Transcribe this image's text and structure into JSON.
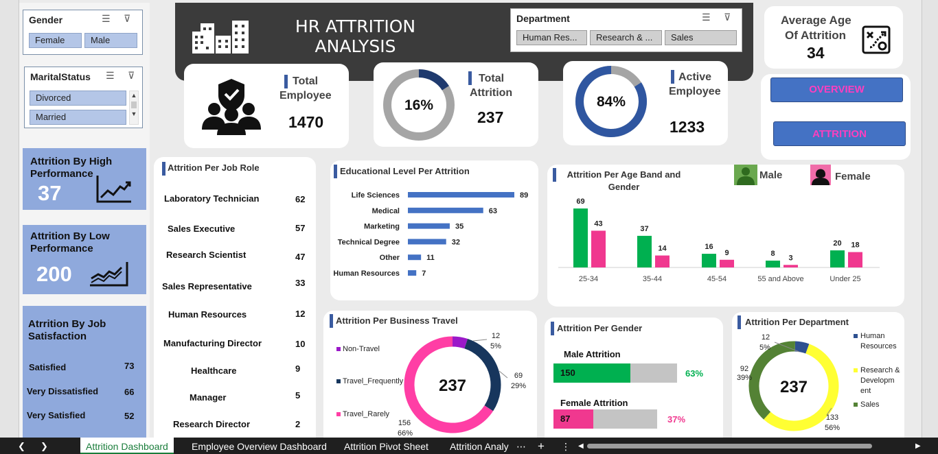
{
  "header": {
    "title_line1": "HR ATTRITION",
    "title_line2": "ANALYSIS"
  },
  "slicers": {
    "gender": {
      "title": "Gender",
      "items": [
        "Female",
        "Male"
      ]
    },
    "marital": {
      "title": "MaritalStatus",
      "items": [
        "Divorced",
        "Married"
      ]
    },
    "department": {
      "title": "Department",
      "items": [
        "Human Res...",
        "Research & ...",
        "Sales"
      ]
    }
  },
  "kpis": {
    "total_employee": {
      "title_line1": "Total",
      "title_line2": "Employee",
      "value": "1470"
    },
    "total_attrition": {
      "title_line1": "Total",
      "title_line2": "Attrition",
      "value": "237",
      "percent": "16%",
      "fraction": 0.16
    },
    "active_employee": {
      "title_line1": "Active",
      "title_line2": "Employee",
      "value": "1233",
      "percent": "84%",
      "fraction": 0.84
    },
    "average_age": {
      "title_line1": "Average Age",
      "title_line2": "Of Attrition",
      "value": "34"
    }
  },
  "nav": {
    "overview": "OVERVIEW",
    "attrition": "ATTRITION"
  },
  "left_panels": {
    "high_perf": {
      "title_line1": "Attrition By High",
      "title_line2": "Performance",
      "value": "37"
    },
    "low_perf": {
      "title_line1": "Attrition By Low",
      "title_line2": "Performance",
      "value": "200"
    },
    "job_sat": {
      "title_line1": "Atrrition By Job",
      "title_line2": "Satisfaction",
      "items": [
        {
          "label": "Satisfied",
          "value": "73"
        },
        {
          "label": "Very Dissatisfied",
          "value": "66"
        },
        {
          "label": "Very Satisfied",
          "value": "52"
        }
      ]
    }
  },
  "job_role": {
    "title": "Attrition Per Job Role",
    "rows": [
      {
        "label": "Laboratory Technician",
        "value": "62"
      },
      {
        "label": "Sales Executive",
        "value": "57"
      },
      {
        "label": "Research Scientist",
        "value": "47"
      },
      {
        "label": "Sales Representative",
        "value": "33"
      },
      {
        "label": "Human Resources",
        "value": "12"
      },
      {
        "label": "Manufacturing Director",
        "value": "10"
      },
      {
        "label": "Healthcare",
        "value": "9"
      },
      {
        "label": "Manager",
        "value": "5"
      },
      {
        "label": "Research Director",
        "value": "2"
      }
    ]
  },
  "age_legend": {
    "male": "Male",
    "female": "Female"
  },
  "gender_panel": {
    "title": "Attrition Per Gender",
    "male_label": "Male Attrition",
    "male_value": "150",
    "male_pct": "63%",
    "male_fraction": 0.63,
    "female_label": "Female Attrition",
    "female_value": "87",
    "female_pct": "37%",
    "female_fraction": 0.37
  },
  "chart_data": [
    {
      "type": "bar",
      "orientation": "horizontal",
      "title": "Educational Level Per Attrition",
      "categories": [
        "Life Sciences",
        "Medical",
        "Marketing",
        "Technical Degree",
        "Other",
        "Human Resources"
      ],
      "values": [
        89,
        63,
        35,
        32,
        11,
        7
      ],
      "color": "#4472c4"
    },
    {
      "type": "bar",
      "title": "Attrition Per Age Band and Gender",
      "categories": [
        "25-34",
        "35-44",
        "45-54",
        "55 and Above",
        "Under 25"
      ],
      "series": [
        {
          "values": [
            69,
            37,
            16,
            8,
            20
          ],
          "color": "#00b050"
        },
        {
          "values": [
            43,
            14,
            9,
            3,
            18
          ],
          "color": "#f0388f"
        }
      ]
    },
    {
      "type": "pie",
      "title": "Attrition Per Business Travel",
      "center_label": "237",
      "labels": [
        "Non-Travel",
        "Travel_Frequently",
        "Travel_Rarely"
      ],
      "values": [
        12,
        69,
        156
      ],
      "percents": [
        "5%",
        "29%",
        "66%"
      ],
      "colors": [
        "#9b19c9",
        "#17365d",
        "#ff3ea5"
      ]
    },
    {
      "type": "pie",
      "title": "Attrition Per Department",
      "center_label": "237",
      "labels": [
        "Human Resources",
        "Research & Development",
        "Sales"
      ],
      "legend_lines": [
        [
          "Human",
          "Resources"
        ],
        [
          "Research &",
          "Developm",
          "ent"
        ],
        [
          "Sales"
        ]
      ],
      "values": [
        12,
        133,
        92
      ],
      "percents": [
        "5%",
        "56%",
        "39%"
      ],
      "colors": [
        "#2e5090",
        "#ffff33",
        "#548235"
      ]
    }
  ],
  "tabs": [
    "Attrition Dashboard",
    "Employee Overview Dashboard",
    "Attrition Pivot Sheet",
    "Attrition Analy"
  ]
}
